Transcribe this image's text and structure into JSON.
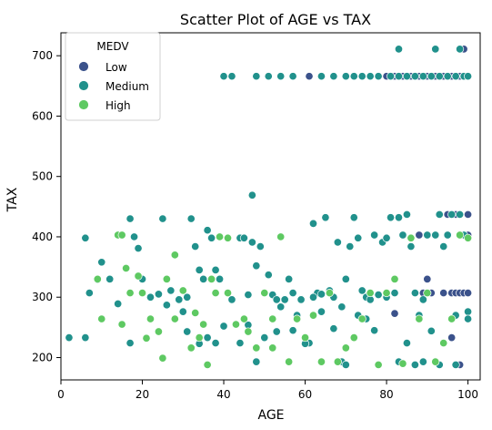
{
  "chart_data": {
    "type": "scatter",
    "title": "Scatter Plot of AGE vs TAX",
    "xlabel": "AGE",
    "ylabel": "TAX",
    "xlim": [
      0,
      103
    ],
    "ylim": [
      163,
      738
    ],
    "xticks": [
      0,
      20,
      40,
      60,
      80,
      100
    ],
    "yticks": [
      200,
      300,
      400,
      500,
      600,
      700
    ],
    "grid": false,
    "legend": {
      "title": "MEDV",
      "placement": "top-left",
      "entries": [
        "Low",
        "Medium",
        "High"
      ]
    },
    "series": [
      {
        "name": "Low",
        "color": "#3b528b",
        "points": [
          [
            61,
            666
          ],
          [
            80,
            666
          ],
          [
            82,
            666
          ],
          [
            84,
            666
          ],
          [
            86,
            666
          ],
          [
            88,
            666
          ],
          [
            90,
            666
          ],
          [
            92,
            666
          ],
          [
            94,
            666
          ],
          [
            96,
            666
          ],
          [
            98,
            666
          ],
          [
            99,
            666
          ],
          [
            100,
            666
          ],
          [
            98,
            711
          ],
          [
            99,
            711
          ],
          [
            93,
            437
          ],
          [
            95,
            437
          ],
          [
            97,
            437
          ],
          [
            100,
            437
          ],
          [
            88,
            403
          ],
          [
            92,
            403
          ],
          [
            95,
            403
          ],
          [
            98,
            403
          ],
          [
            100,
            403
          ],
          [
            89,
            307
          ],
          [
            91,
            307
          ],
          [
            94,
            307
          ],
          [
            96,
            307
          ],
          [
            97,
            307
          ],
          [
            98,
            307
          ],
          [
            99,
            307
          ],
          [
            100,
            307
          ],
          [
            82,
            273
          ],
          [
            96,
            233
          ],
          [
            92,
            193
          ],
          [
            98,
            188
          ],
          [
            90,
            330
          ],
          [
            94,
            384
          ]
        ]
      },
      {
        "name": "Medium",
        "color": "#21918c",
        "points": [
          [
            40,
            666
          ],
          [
            42,
            666
          ],
          [
            48,
            666
          ],
          [
            51,
            666
          ],
          [
            54,
            666
          ],
          [
            57,
            666
          ],
          [
            64,
            666
          ],
          [
            67,
            666
          ],
          [
            70,
            666
          ],
          [
            72,
            666
          ],
          [
            74,
            666
          ],
          [
            76,
            666
          ],
          [
            78,
            666
          ],
          [
            81,
            666
          ],
          [
            83,
            666
          ],
          [
            85,
            666
          ],
          [
            87,
            666
          ],
          [
            89,
            666
          ],
          [
            91,
            666
          ],
          [
            93,
            666
          ],
          [
            95,
            666
          ],
          [
            97,
            666
          ],
          [
            99,
            666
          ],
          [
            100,
            666
          ],
          [
            83,
            711
          ],
          [
            92,
            711
          ],
          [
            98,
            711
          ],
          [
            47,
            469
          ],
          [
            2,
            233
          ],
          [
            6,
            233
          ],
          [
            6,
            398
          ],
          [
            9,
            329
          ],
          [
            7,
            307
          ],
          [
            10,
            358
          ],
          [
            12,
            330
          ],
          [
            14,
            289
          ],
          [
            17,
            430
          ],
          [
            18,
            400
          ],
          [
            19,
            381
          ],
          [
            20,
            330
          ],
          [
            22,
            300
          ],
          [
            24,
            305
          ],
          [
            25,
            430
          ],
          [
            27,
            311
          ],
          [
            29,
            296
          ],
          [
            31,
            300
          ],
          [
            32,
            430
          ],
          [
            33,
            384
          ],
          [
            34,
            345
          ],
          [
            35,
            330
          ],
          [
            36,
            411
          ],
          [
            37,
            398
          ],
          [
            38,
            345
          ],
          [
            39,
            330
          ],
          [
            42,
            296
          ],
          [
            44,
            398
          ],
          [
            45,
            398
          ],
          [
            46,
            304
          ],
          [
            47,
            391
          ],
          [
            48,
            352
          ],
          [
            49,
            384
          ],
          [
            51,
            337
          ],
          [
            52,
            304
          ],
          [
            53,
            296
          ],
          [
            54,
            284
          ],
          [
            55,
            296
          ],
          [
            56,
            330
          ],
          [
            57,
            307
          ],
          [
            58,
            270
          ],
          [
            59,
            296
          ],
          [
            60,
            233
          ],
          [
            61,
            224
          ],
          [
            62,
            422
          ],
          [
            63,
            307
          ],
          [
            64,
            305
          ],
          [
            65,
            432
          ],
          [
            66,
            311
          ],
          [
            67,
            300
          ],
          [
            68,
            391
          ],
          [
            69,
            284
          ],
          [
            70,
            330
          ],
          [
            71,
            384
          ],
          [
            72,
            432
          ],
          [
            73,
            398
          ],
          [
            74,
            311
          ],
          [
            75,
            300
          ],
          [
            76,
            296
          ],
          [
            77,
            403
          ],
          [
            78,
            304
          ],
          [
            79,
            391
          ],
          [
            80,
            398
          ],
          [
            81,
            432
          ],
          [
            82,
            307
          ],
          [
            83,
            432
          ],
          [
            84,
            403
          ],
          [
            85,
            437
          ],
          [
            86,
            384
          ],
          [
            87,
            307
          ],
          [
            88,
            270
          ],
          [
            89,
            296
          ],
          [
            90,
            403
          ],
          [
            91,
            244
          ],
          [
            92,
            403
          ],
          [
            93,
            437
          ],
          [
            94,
            384
          ],
          [
            95,
            403
          ],
          [
            96,
            437
          ],
          [
            97,
            270
          ],
          [
            98,
            437
          ],
          [
            99,
            403
          ],
          [
            100,
            276
          ],
          [
            17,
            224
          ],
          [
            22,
            300
          ],
          [
            26,
            287
          ],
          [
            30,
            276
          ],
          [
            31,
            243
          ],
          [
            34,
            223
          ],
          [
            36,
            233
          ],
          [
            38,
            224
          ],
          [
            40,
            252
          ],
          [
            44,
            224
          ],
          [
            46,
            254
          ],
          [
            48,
            193
          ],
          [
            50,
            233
          ],
          [
            53,
            243
          ],
          [
            57,
            245
          ],
          [
            60,
            223
          ],
          [
            62,
            300
          ],
          [
            64,
            276
          ],
          [
            67,
            248
          ],
          [
            69,
            193
          ],
          [
            70,
            188
          ],
          [
            73,
            270
          ],
          [
            75,
            264
          ],
          [
            77,
            245
          ],
          [
            80,
            300
          ],
          [
            83,
            193
          ],
          [
            85,
            224
          ],
          [
            87,
            188
          ],
          [
            89,
            193
          ],
          [
            93,
            188
          ],
          [
            97,
            188
          ],
          [
            100,
            264
          ]
        ]
      },
      {
        "name": "High",
        "color": "#5ec962",
        "points": [
          [
            9,
            330
          ],
          [
            10,
            264
          ],
          [
            14,
            403
          ],
          [
            15,
            403
          ],
          [
            16,
            348
          ],
          [
            17,
            307
          ],
          [
            19,
            335
          ],
          [
            20,
            307
          ],
          [
            22,
            264
          ],
          [
            24,
            243
          ],
          [
            26,
            330
          ],
          [
            28,
            370
          ],
          [
            30,
            311
          ],
          [
            32,
            216
          ],
          [
            34,
            233
          ],
          [
            36,
            188
          ],
          [
            37,
            330
          ],
          [
            38,
            307
          ],
          [
            39,
            400
          ],
          [
            41,
            307
          ],
          [
            43,
            255
          ],
          [
            46,
            243
          ],
          [
            48,
            216
          ],
          [
            50,
            307
          ],
          [
            52,
            216
          ],
          [
            54,
            400
          ],
          [
            56,
            193
          ],
          [
            58,
            264
          ],
          [
            60,
            233
          ],
          [
            62,
            270
          ],
          [
            64,
            193
          ],
          [
            66,
            307
          ],
          [
            68,
            193
          ],
          [
            70,
            216
          ],
          [
            72,
            233
          ],
          [
            74,
            264
          ],
          [
            76,
            307
          ],
          [
            78,
            188
          ],
          [
            80,
            307
          ],
          [
            82,
            330
          ],
          [
            84,
            190
          ],
          [
            86,
            398
          ],
          [
            88,
            264
          ],
          [
            90,
            307
          ],
          [
            92,
            193
          ],
          [
            94,
            224
          ],
          [
            96,
            264
          ],
          [
            98,
            403
          ],
          [
            100,
            398
          ],
          [
            15,
            255
          ],
          [
            21,
            232
          ],
          [
            25,
            199
          ],
          [
            28,
            264
          ],
          [
            33,
            274
          ],
          [
            35,
            255
          ],
          [
            41,
            398
          ],
          [
            45,
            264
          ],
          [
            52,
            264
          ]
        ]
      }
    ]
  }
}
